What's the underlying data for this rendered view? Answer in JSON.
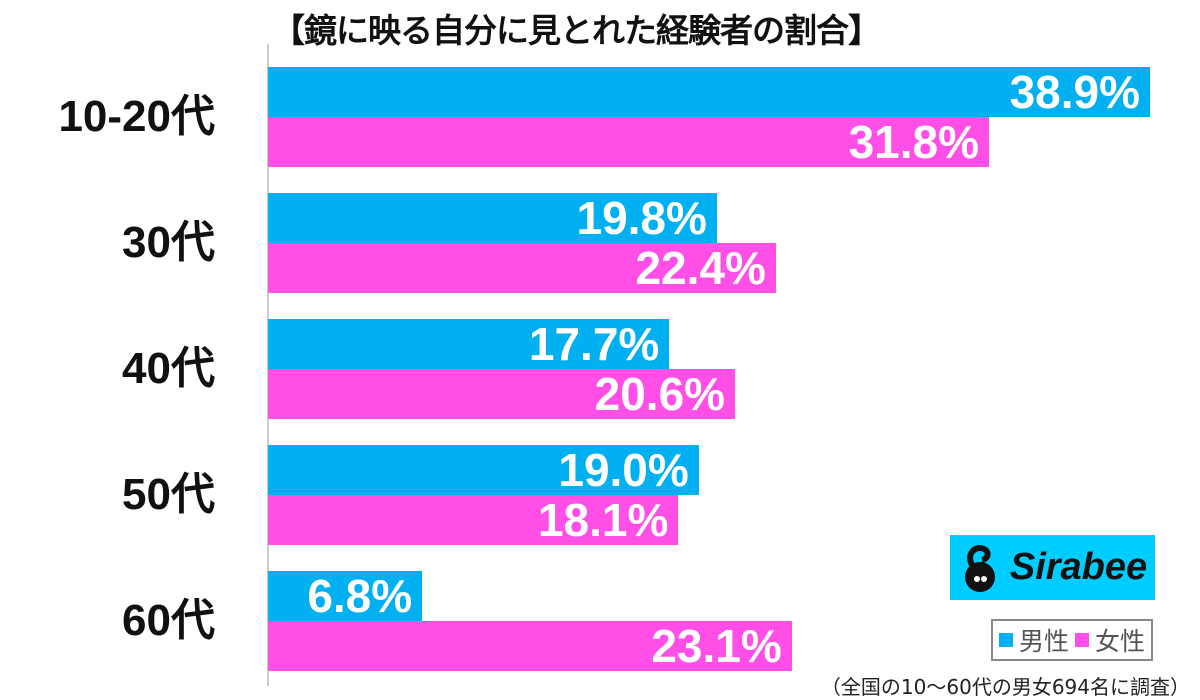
{
  "chart_data": {
    "type": "bar",
    "orientation": "horizontal",
    "title": "【鏡に映る自分に見とれた経験者の割合】",
    "categories": [
      "10-20代",
      "30代",
      "40代",
      "50代",
      "60代"
    ],
    "series": [
      {
        "name": "男性",
        "color": "#00b0f0",
        "values": [
          38.9,
          19.8,
          17.7,
          19.0,
          6.8
        ]
      },
      {
        "name": "女性",
        "color": "#ff4fe6",
        "values": [
          31.8,
          22.4,
          20.6,
          18.1,
          23.1
        ]
      }
    ],
    "value_labels": [
      [
        "38.9%",
        "19.8%",
        "17.7%",
        "19.0%",
        "6.8%"
      ],
      [
        "31.8%",
        "22.4%",
        "20.6%",
        "18.1%",
        "23.1%"
      ]
    ],
    "xlim": [
      0,
      40
    ],
    "grid": false,
    "legend_position": "bottom-right"
  },
  "logo": {
    "text": "Sirabee",
    "background": "#00cdff"
  },
  "note": "（全国の10〜60代の男女694名に調査）"
}
